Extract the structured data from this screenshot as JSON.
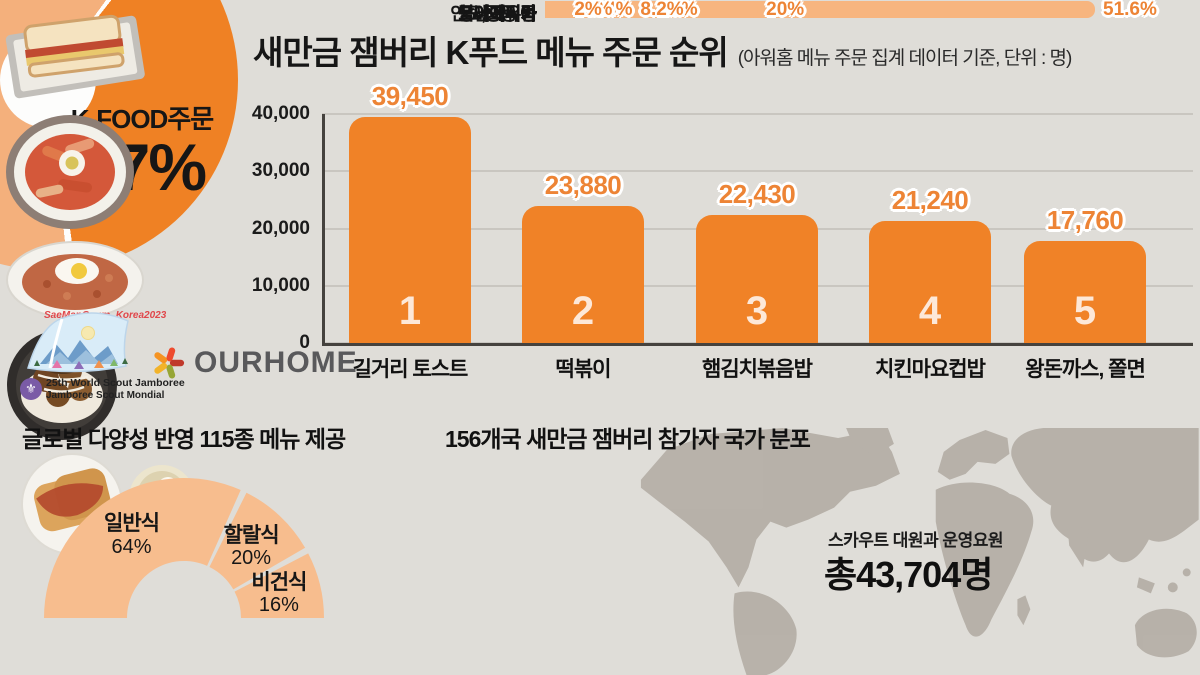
{
  "header": {
    "title": "새만금 잼버리 K푸드 메뉴 주문 순위",
    "subtitle": "(아워홈 메뉴 주문 집계 데이터 기준, 단위 : 명)"
  },
  "kfood_donut": {
    "label": "K-FOOD주문",
    "value": 37,
    "value_label": "37%",
    "main_color": "#ef8124",
    "rest_color": "#f4b07c"
  },
  "logos": {
    "jamboree": {
      "script_line": "SaeManGeum, Korea2023",
      "line1": "25th World Scout Jamboree",
      "line2": "Jamboree Scout Mondial"
    },
    "ourhome": {
      "name": "OURHOME"
    }
  },
  "chart_data": [
    {
      "name": "kfood_menu_ranking",
      "type": "bar",
      "title": "새만금 잼버리 K푸드 메뉴 주문 순위",
      "unit": "명",
      "categories": [
        "길거리 토스트",
        "떡볶이",
        "햄김치볶음밥",
        "치킨마요컵밥",
        "왕돈까스, 쫄면"
      ],
      "values": [
        39450,
        23880,
        22430,
        21240,
        17760
      ],
      "value_labels": [
        "39,450",
        "23,880",
        "22,430",
        "21,240",
        "17,760"
      ],
      "ranks": [
        "1",
        "2",
        "3",
        "4",
        "5"
      ],
      "photos": [
        "sandwich-tray",
        "tteokbokki-bowl",
        "fried-rice-egg-plate",
        "chicken-mayo-bowl",
        "pork-cutlet-noodles"
      ],
      "ylim": [
        0,
        40000
      ],
      "yticks": [
        0,
        10000,
        20000,
        30000,
        40000
      ],
      "ytick_labels": [
        "0",
        "10,000",
        "20,000",
        "30,000",
        "40,000"
      ],
      "grid": true,
      "bar_color": "#f08227"
    },
    {
      "name": "menu_diversity",
      "type": "pie",
      "shape": "half-donut",
      "title": "글로벌 다양성 반영 115종 메뉴 제공",
      "segments": [
        {
          "label": "일반식",
          "pct": 64,
          "pct_label": "64%"
        },
        {
          "label": "할랄식",
          "pct": 20,
          "pct_label": "20%"
        },
        {
          "label": "비건식",
          "pct": 16,
          "pct_label": "16%"
        }
      ],
      "color": "#f7bd8e"
    },
    {
      "name": "participant_countries",
      "type": "bar",
      "orientation": "horizontal",
      "title": "156개국 새만금 잼버리 참가자 국가 분포",
      "categories": [
        "유럽",
        "아시아",
        "남아메리카",
        "동남아시아",
        "아프리카",
        "북아메리카",
        "오세아니아",
        "인도,중동 등"
      ],
      "values": [
        51.6,
        20,
        10,
        8.2,
        3.4,
        3,
        3,
        2
      ],
      "value_labels": [
        "51.6%",
        "20%",
        "10%",
        "8.2%",
        "3.4%",
        "3%",
        "3%",
        "2%"
      ],
      "bar_color": "#f7b57f"
    }
  ],
  "totals": {
    "caption": "스카우트 대원과 운영요원",
    "total": "총43,704명"
  },
  "colors": {
    "background": "#dfddd8",
    "bar_orange": "#f08227",
    "light_orange": "#f7b57f",
    "value_label_orange": "#ed8435",
    "map_gray": "#b4aea6",
    "axis_dark": "#45423e"
  }
}
